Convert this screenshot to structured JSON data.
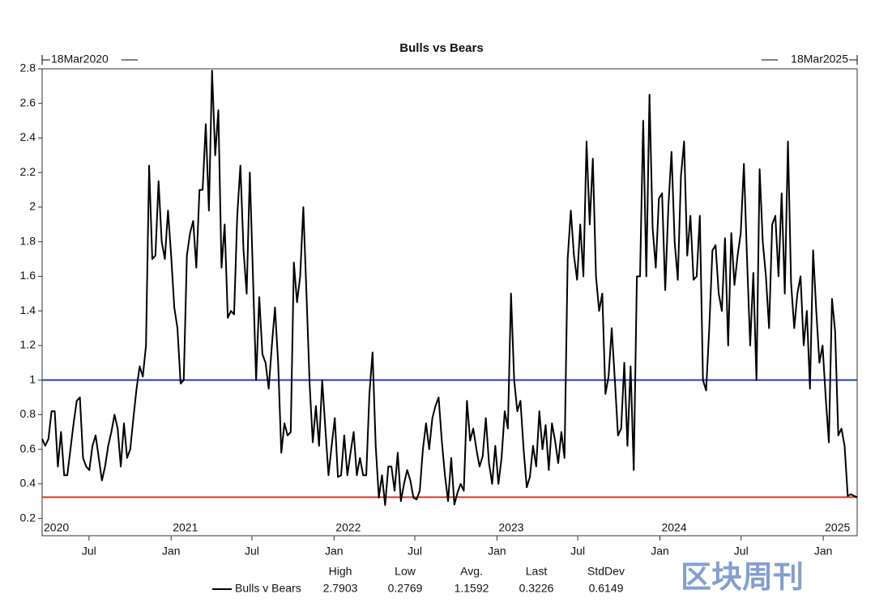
{
  "chart_data": {
    "type": "line",
    "title": "Bulls vs Bears",
    "start_label": "18Mar2020",
    "end_label": "18Mar2025",
    "xlim": [
      "2020-03-18",
      "2025-03-18"
    ],
    "xticks": [
      {
        "value": "2020-07",
        "label": "Jul"
      },
      {
        "value": "2021-01",
        "label": "Jan"
      },
      {
        "value": "2021-07",
        "label": "Jul"
      },
      {
        "value": "2022-01",
        "label": "Jan"
      },
      {
        "value": "2022-07",
        "label": "Jul"
      },
      {
        "value": "2023-01",
        "label": "Jan"
      },
      {
        "value": "2023-07",
        "label": "Jul"
      },
      {
        "value": "2024-01",
        "label": "Jan"
      },
      {
        "value": "2024-07",
        "label": "Jul"
      },
      {
        "value": "2025-01",
        "label": "Jan"
      }
    ],
    "year_labels": [
      {
        "value": "2020-03-18",
        "label": "2020"
      },
      {
        "value": "2021-01",
        "label": "2021"
      },
      {
        "value": "2022-01",
        "label": "2022"
      },
      {
        "value": "2023-01",
        "label": "2023"
      },
      {
        "value": "2024-01",
        "label": "2024"
      },
      {
        "value": "2025-01",
        "label": "2025"
      }
    ],
    "ylim": [
      0.1,
      2.8
    ],
    "yticks": [
      0.2,
      0.4,
      0.6,
      0.8,
      1,
      1.2,
      1.4,
      1.6,
      1.8,
      2,
      2.2,
      2.4,
      2.6,
      2.8
    ],
    "reference_lines": [
      {
        "value": 1,
        "color": "#1f3fbf"
      },
      {
        "value": 0.3226,
        "color": "#d23a2a"
      }
    ],
    "series": [
      {
        "name": "Bulls v Bears",
        "color": "#000000",
        "values": [
          0.66,
          0.62,
          0.66,
          0.82,
          0.82,
          0.5,
          0.7,
          0.45,
          0.45,
          0.6,
          0.75,
          0.88,
          0.9,
          0.55,
          0.5,
          0.48,
          0.62,
          0.68,
          0.55,
          0.42,
          0.5,
          0.62,
          0.7,
          0.8,
          0.72,
          0.5,
          0.75,
          0.55,
          0.6,
          0.78,
          0.95,
          1.08,
          1.02,
          1.2,
          2.24,
          1.7,
          1.72,
          2.15,
          1.8,
          1.7,
          1.98,
          1.72,
          1.42,
          1.3,
          0.98,
          1.0,
          1.72,
          1.85,
          1.92,
          1.65,
          2.1,
          2.1,
          2.48,
          1.98,
          2.79,
          2.3,
          2.56,
          1.65,
          1.9,
          1.36,
          1.4,
          1.38,
          1.95,
          2.24,
          1.75,
          1.5,
          2.2,
          1.6,
          1.0,
          1.48,
          1.15,
          1.1,
          0.95,
          1.2,
          1.42,
          1.1,
          0.58,
          0.75,
          0.68,
          0.7,
          1.68,
          1.45,
          1.6,
          2.0,
          1.5,
          0.98,
          0.64,
          0.85,
          0.62,
          1.0,
          0.72,
          0.45,
          0.62,
          0.78,
          0.44,
          0.45,
          0.68,
          0.45,
          0.58,
          0.7,
          0.45,
          0.55,
          0.45,
          0.45,
          0.92,
          1.16,
          0.62,
          0.32,
          0.45,
          0.2769,
          0.5,
          0.5,
          0.36,
          0.58,
          0.3,
          0.4,
          0.48,
          0.42,
          0.32,
          0.31,
          0.36,
          0.6,
          0.75,
          0.6,
          0.78,
          0.85,
          0.9,
          0.65,
          0.45,
          0.3,
          0.55,
          0.28,
          0.35,
          0.4,
          0.36,
          0.88,
          0.65,
          0.72,
          0.6,
          0.5,
          0.56,
          0.78,
          0.52,
          0.4,
          0.62,
          0.4,
          0.55,
          0.82,
          0.72,
          1.5,
          1.0,
          0.82,
          0.88,
          0.6,
          0.38,
          0.44,
          0.62,
          0.5,
          0.82,
          0.6,
          0.74,
          0.48,
          0.75,
          0.65,
          0.52,
          0.7,
          0.55,
          1.7,
          1.98,
          1.72,
          1.58,
          1.9,
          1.6,
          2.38,
          1.9,
          2.28,
          1.6,
          1.4,
          1.5,
          0.92,
          1.02,
          1.3,
          1.0,
          0.68,
          0.72,
          1.1,
          0.62,
          1.08,
          0.48,
          1.6,
          1.6,
          2.5,
          1.6,
          2.65,
          1.88,
          1.65,
          2.05,
          2.08,
          1.52,
          2.0,
          2.32,
          1.8,
          1.58,
          2.18,
          2.38,
          1.72,
          1.95,
          1.58,
          1.6,
          1.95,
          1.0,
          0.94,
          1.3,
          1.75,
          1.78,
          1.5,
          1.4,
          1.82,
          1.2,
          1.85,
          1.55,
          1.72,
          1.85,
          2.25,
          1.7,
          1.2,
          1.62,
          1.0,
          2.22,
          1.8,
          1.6,
          1.3,
          1.9,
          1.95,
          1.6,
          2.08,
          1.5,
          2.38,
          1.56,
          1.3,
          1.5,
          1.6,
          1.2,
          1.4,
          0.95,
          1.75,
          1.4,
          1.1,
          1.2,
          0.9,
          0.64,
          1.47,
          1.28,
          0.68,
          0.72,
          0.62,
          0.33,
          0.34,
          0.33,
          0.3226
        ]
      }
    ],
    "stats": {
      "headers": [
        "High",
        "Low",
        "Avg.",
        "Last",
        "StdDev"
      ],
      "values": [
        2.7903,
        0.2769,
        1.1592,
        0.3226,
        0.6149
      ]
    },
    "watermark": "区块周刊"
  }
}
